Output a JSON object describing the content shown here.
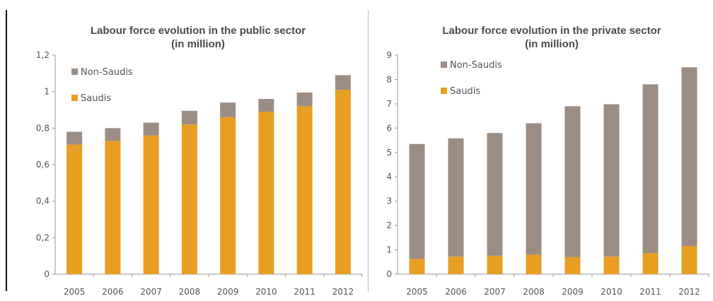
{
  "colors": {
    "saudis": "#e89e22",
    "non_saudis": "#9b8d83",
    "axis": "#9a9a9a"
  },
  "chart_data": [
    {
      "type": "bar",
      "stacked": true,
      "title_line1": "Labour force evolution in the public sector",
      "title_line2": "(in million)",
      "categories": [
        "2005",
        "2006",
        "2007",
        "2008",
        "2009",
        "2010",
        "2011",
        "2012"
      ],
      "series": [
        {
          "name": "Saudis",
          "values": [
            0.71,
            0.73,
            0.76,
            0.82,
            0.86,
            0.89,
            0.92,
            1.01
          ]
        },
        {
          "name": "Non-Saudis",
          "values": [
            0.07,
            0.07,
            0.07,
            0.075,
            0.08,
            0.07,
            0.075,
            0.08
          ]
        }
      ],
      "y_ticks": [
        "0",
        "0,2",
        "0,4",
        "0,6",
        "0,8",
        "1",
        "1,2"
      ],
      "ylim": [
        0,
        1.2
      ],
      "legend_position": "top-left",
      "grid": false
    },
    {
      "type": "bar",
      "stacked": true,
      "title_line1": "Labour force evolution in the private sector",
      "title_line2": "(in million)",
      "categories": [
        "2005",
        "2006",
        "2007",
        "2008",
        "2009",
        "2010",
        "2011",
        "2012"
      ],
      "series": [
        {
          "name": "Saudis",
          "values": [
            0.62,
            0.72,
            0.76,
            0.8,
            0.7,
            0.72,
            0.86,
            1.15
          ]
        },
        {
          "name": "Non-Saudis",
          "values": [
            4.73,
            4.86,
            5.04,
            5.4,
            6.2,
            6.26,
            6.94,
            7.35
          ]
        }
      ],
      "y_ticks": [
        "0",
        "1",
        "2",
        "3",
        "4",
        "5",
        "6",
        "7",
        "8",
        "9"
      ],
      "ylim": [
        0,
        9
      ],
      "legend_position": "top-left",
      "grid": false
    }
  ]
}
